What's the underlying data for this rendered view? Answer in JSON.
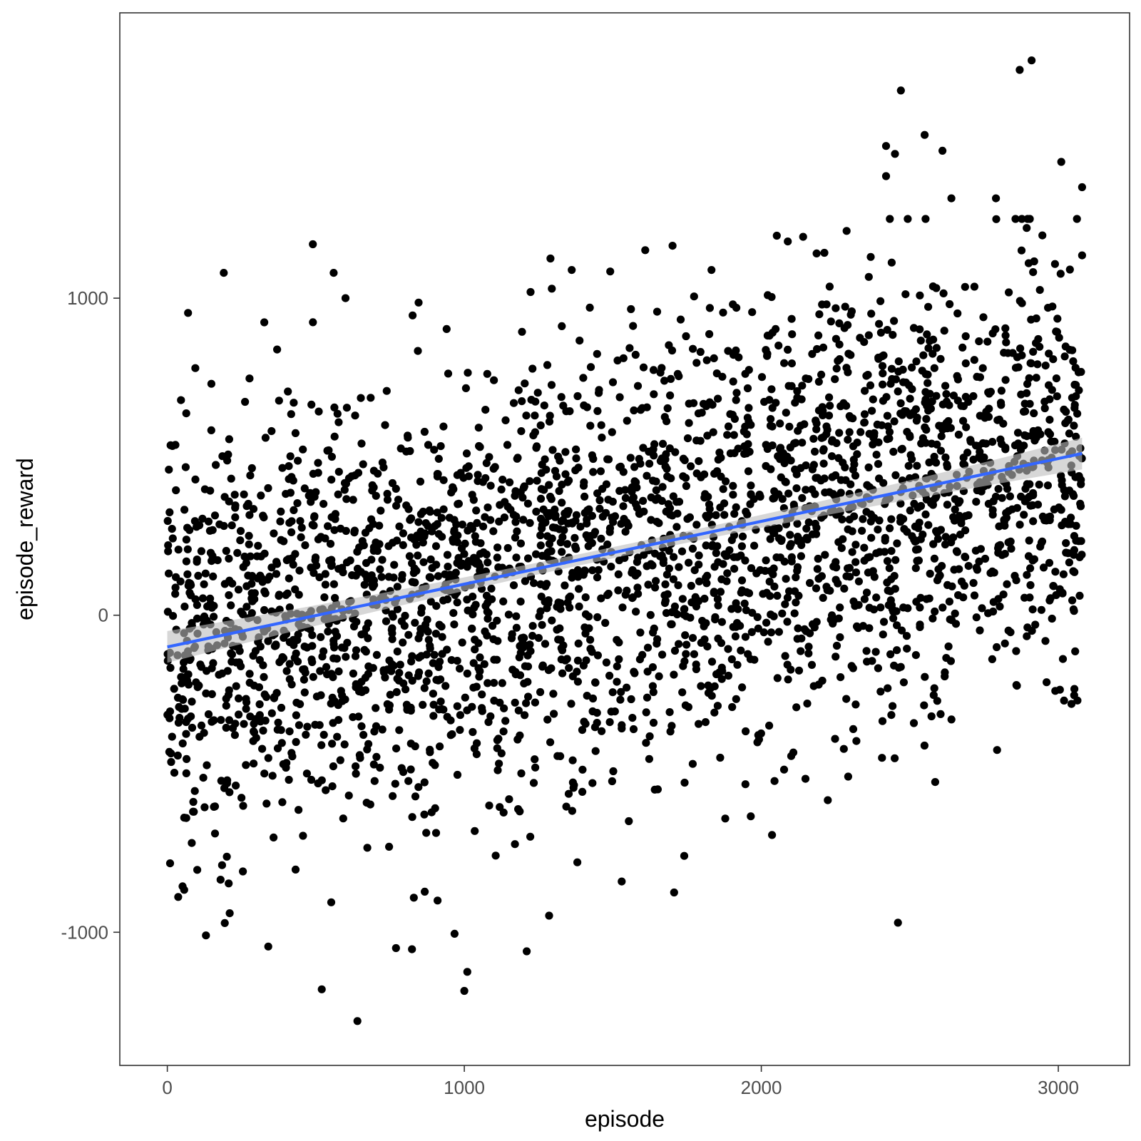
{
  "chart_data": {
    "type": "scatter",
    "title": "",
    "xlabel": "episode",
    "ylabel": "episode_reward",
    "xlim": [
      -160,
      3240
    ],
    "ylim": [
      -1420,
      1900
    ],
    "x_ticks": [
      0,
      1000,
      2000,
      3000
    ],
    "y_ticks": [
      -1000,
      0,
      1000
    ],
    "grid": false,
    "legend": "none",
    "n_points": 3080,
    "colors": {
      "points": "#000000",
      "trend_line": "#3366FF",
      "confidence_band": "#bdbdbd",
      "panel_border": "#333333"
    },
    "trend": {
      "method": "linear",
      "x_start": 0,
      "y_start": -100,
      "x_end": 3080,
      "y_end": 510,
      "band_halfwidth_mean": 25
    },
    "highlighted_points": [
      {
        "x": 2910,
        "y": 1750
      },
      {
        "x": 2870,
        "y": 1720
      },
      {
        "x": 2470,
        "y": 1655
      },
      {
        "x": 2550,
        "y": 1515
      },
      {
        "x": 2610,
        "y": 1465
      },
      {
        "x": 2420,
        "y": 1480
      },
      {
        "x": 2450,
        "y": 1455
      },
      {
        "x": 2420,
        "y": 1385
      },
      {
        "x": 3010,
        "y": 1430
      },
      {
        "x": 3080,
        "y": 1350
      },
      {
        "x": 2640,
        "y": 1315
      },
      {
        "x": 2790,
        "y": 1315
      },
      {
        "x": 490,
        "y": 1170
      },
      {
        "x": 1290,
        "y": 1125
      },
      {
        "x": 190,
        "y": 1080
      },
      {
        "x": 560,
        "y": 1080
      },
      {
        "x": 600,
        "y": 1000
      },
      {
        "x": 3080,
        "y": 1135
      },
      {
        "x": 2460,
        "y": -970
      },
      {
        "x": 130,
        "y": -1010
      },
      {
        "x": 340,
        "y": -1045
      },
      {
        "x": 770,
        "y": -1050
      },
      {
        "x": 1210,
        "y": -1060
      },
      {
        "x": 1010,
        "y": -1125
      },
      {
        "x": 520,
        "y": -1180
      },
      {
        "x": 1000,
        "y": -1185
      },
      {
        "x": 640,
        "y": -1280
      },
      {
        "x": 1530,
        "y": -840
      },
      {
        "x": 910,
        "y": -900
      },
      {
        "x": 210,
        "y": -940
      }
    ]
  }
}
